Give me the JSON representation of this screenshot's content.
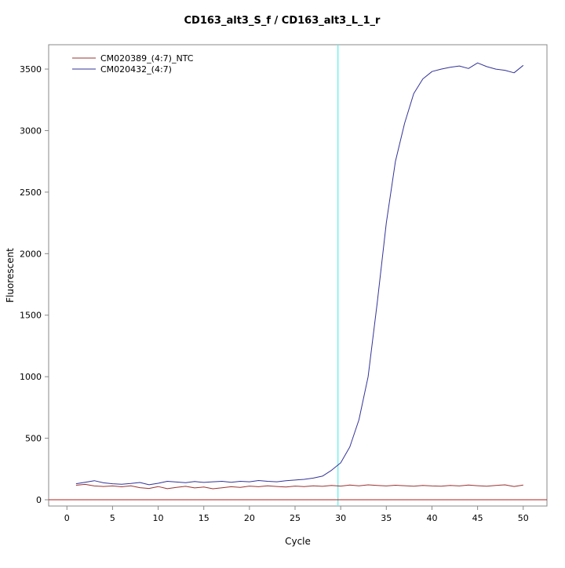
{
  "title": "CD163_alt3_S_f / CD163_alt3_L_1_r",
  "chart_data": {
    "type": "line",
    "title": "CD163_alt3_S_f / CD163_alt3_L_1_r",
    "xlabel": "Cycle",
    "ylabel": "Fluorescent",
    "xlim": [
      0,
      50
    ],
    "ylim": [
      0,
      3500
    ],
    "grid": false,
    "legend_position": "top-left",
    "x_ticks": [
      0,
      5,
      10,
      15,
      20,
      25,
      30,
      35,
      40,
      45,
      50
    ],
    "y_ticks": [
      0,
      500,
      1000,
      1500,
      2000,
      2500,
      3000,
      3500
    ],
    "x": [
      1,
      2,
      3,
      4,
      5,
      6,
      7,
      8,
      9,
      10,
      11,
      12,
      13,
      14,
      15,
      16,
      17,
      18,
      19,
      20,
      21,
      22,
      23,
      24,
      25,
      26,
      27,
      28,
      29,
      30,
      31,
      32,
      33,
      34,
      35,
      36,
      37,
      38,
      39,
      40,
      41,
      42,
      43,
      44,
      45,
      46,
      47,
      48,
      49,
      50
    ],
    "series": [
      {
        "name": "CM020389_(4:7)_NTC",
        "color": "#993333",
        "values": [
          118,
          125,
          112,
          108,
          112,
          105,
          113,
          98,
          92,
          107,
          90,
          101,
          109,
          96,
          103,
          89,
          97,
          106,
          101,
          111,
          106,
          113,
          108,
          104,
          111,
          107,
          113,
          109,
          116,
          111,
          119,
          113,
          121,
          116,
          112,
          118,
          114,
          110,
          116,
          112,
          110,
          116,
          112,
          119,
          114,
          110,
          117,
          121,
          108,
          119
        ]
      },
      {
        "name": "CM020432_(4:7)",
        "color": "#333399",
        "values": [
          130,
          142,
          155,
          138,
          130,
          126,
          132,
          140,
          122,
          134,
          150,
          144,
          139,
          148,
          141,
          146,
          150,
          142,
          150,
          146,
          156,
          150,
          146,
          154,
          160,
          166,
          176,
          192,
          240,
          300,
          430,
          650,
          1000,
          1600,
          2250,
          2750,
          3060,
          3300,
          3420,
          3480,
          3500,
          3515,
          3525,
          3505,
          3550,
          3520,
          3500,
          3490,
          3470,
          3530
        ]
      }
    ],
    "ct_vline": {
      "x": 29.7,
      "color": "#66eeee"
    },
    "threshold_hline": {
      "y": 0,
      "color": "#b22222"
    },
    "axis_color": "#888888"
  }
}
